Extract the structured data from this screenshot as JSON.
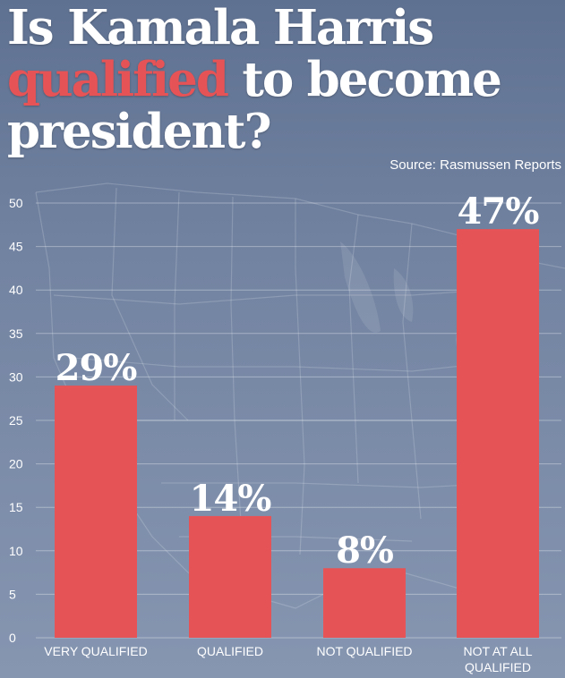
{
  "title": {
    "line1": "Is Kamala Harris",
    "line2_highlight": "qualified",
    "line2_rest": "to become",
    "line3": "president?"
  },
  "source": "Source: Rasmussen Reports",
  "colors": {
    "bar": "#e65356",
    "highlight": "#e65356",
    "text": "#ffffff",
    "grid": "#ffffff"
  },
  "chart_data": {
    "type": "bar",
    "categories": [
      [
        "VERY QUALIFIED"
      ],
      [
        "QUALIFIED"
      ],
      [
        "NOT QUALIFIED"
      ],
      [
        "NOT AT ALL",
        "QUALIFIED"
      ]
    ],
    "values": [
      29,
      14,
      8,
      47
    ],
    "data_labels": [
      "29%",
      "14%",
      "8%",
      "47%"
    ],
    "ylim": [
      0,
      50
    ],
    "yticks": [
      0,
      5,
      10,
      15,
      20,
      25,
      30,
      35,
      40,
      45,
      50
    ],
    "grid": true,
    "legend": "none",
    "background": "map of the United States"
  }
}
